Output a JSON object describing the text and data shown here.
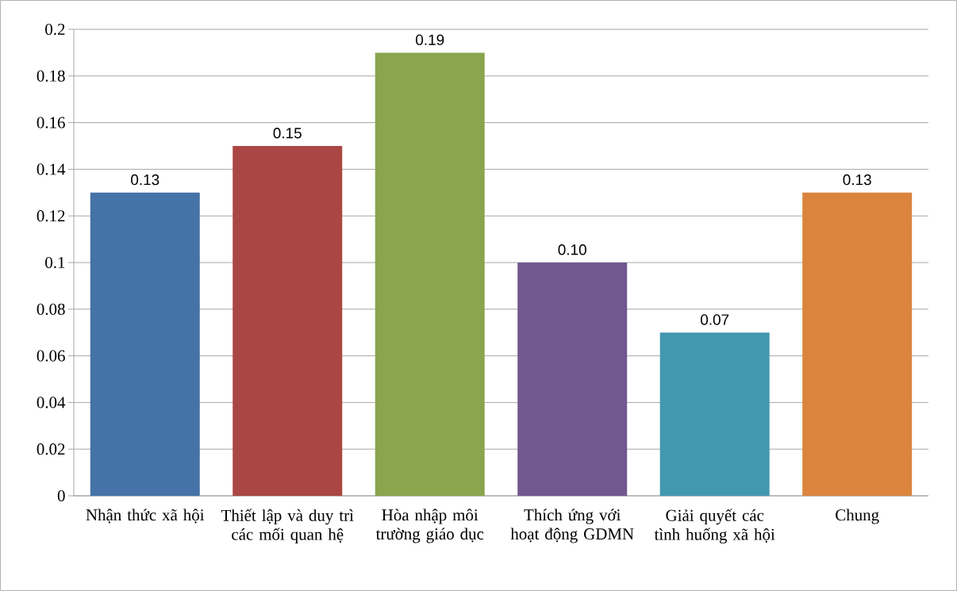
{
  "chart_data": {
    "type": "bar",
    "categories": [
      "Nhận thức xã hội",
      "Thiết lập và duy trì các mối quan hệ",
      "Hòa nhập môi trường giáo dục",
      "Thích ứng với hoạt động GDMN",
      "Giải quyết các tình huống xã hội",
      "Chung"
    ],
    "values": [
      0.13,
      0.15,
      0.19,
      0.1,
      0.07,
      0.13
    ],
    "value_labels": [
      "0.13",
      "0.15",
      "0.19",
      "0.10",
      "0.07",
      "0.13"
    ],
    "colors": [
      "#4572a7",
      "#aa4643",
      "#89a54e",
      "#71588f",
      "#4198af",
      "#db843d"
    ],
    "ylim": [
      0,
      0.2
    ],
    "yticks": [
      0,
      0.02,
      0.04,
      0.06,
      0.08,
      0.1,
      0.12,
      0.14,
      0.16,
      0.18,
      0.2
    ],
    "grid": "y"
  }
}
